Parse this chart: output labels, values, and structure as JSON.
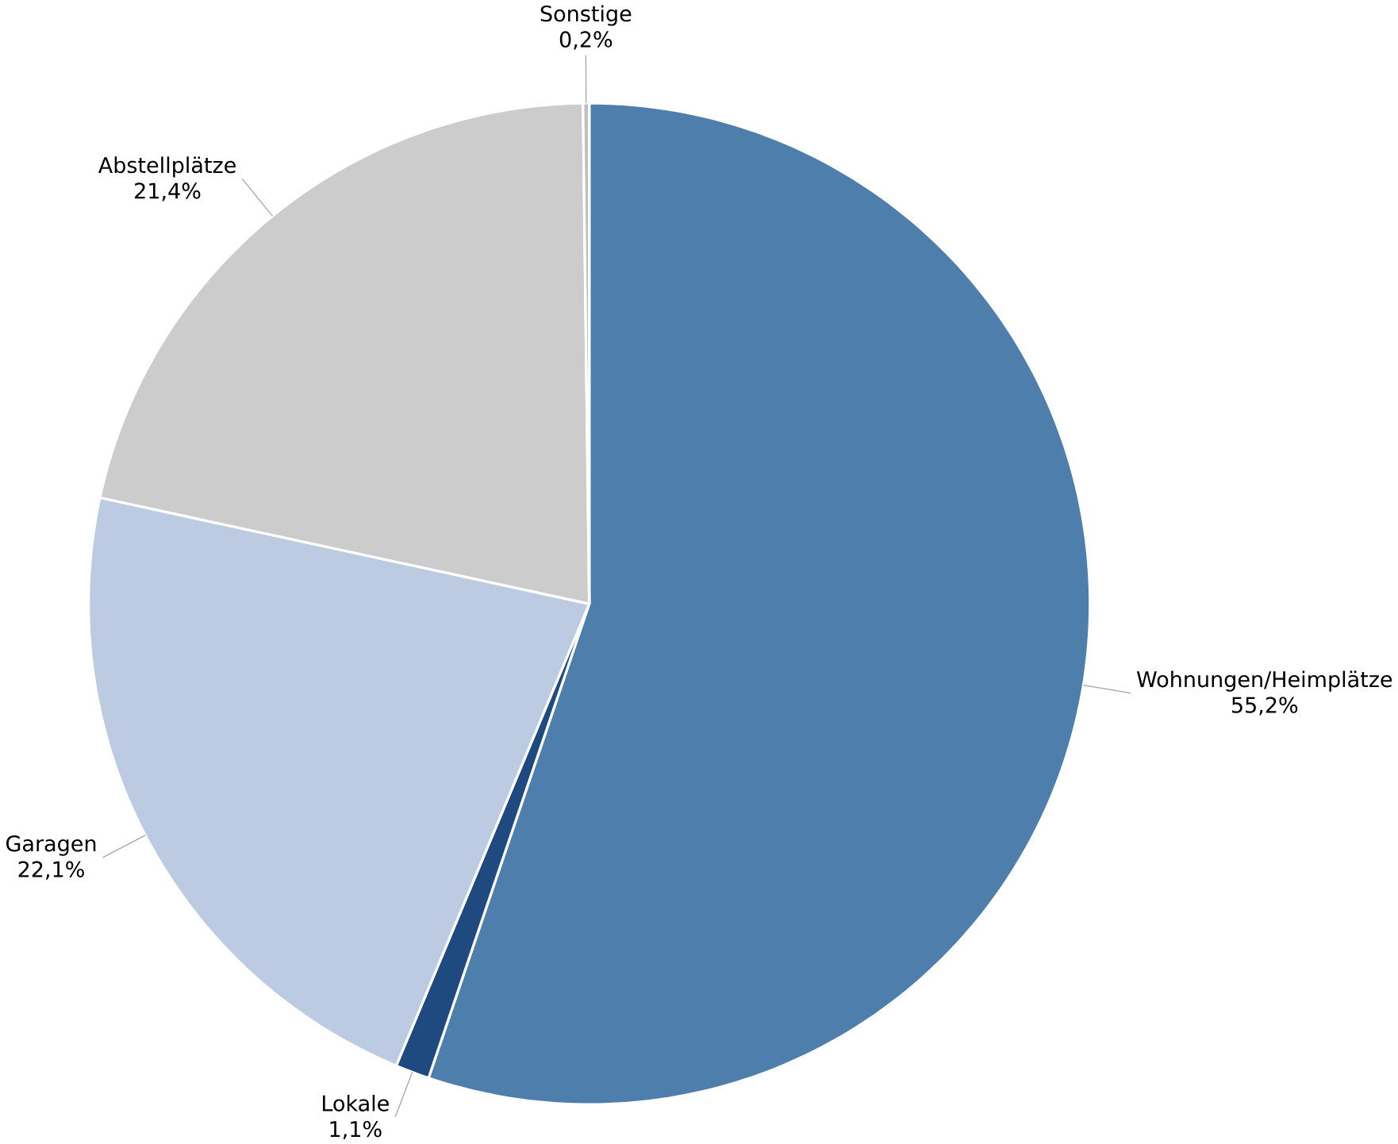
{
  "chart_data": {
    "type": "pie",
    "categories": [
      "Wohnungen/Heimplätze",
      "Lokale",
      "Garagen",
      "Abstellplätze",
      "Sonstige"
    ],
    "values": [
      55.2,
      1.1,
      22.1,
      21.4,
      0.2
    ],
    "value_labels": [
      "55,2%",
      "1,1%",
      "22,1%",
      "21,4%",
      "0,2%"
    ],
    "colors": [
      "#4e7eab",
      "#1f4a80",
      "#bccbe1",
      "#cccccc",
      "#bfbfbf"
    ]
  }
}
